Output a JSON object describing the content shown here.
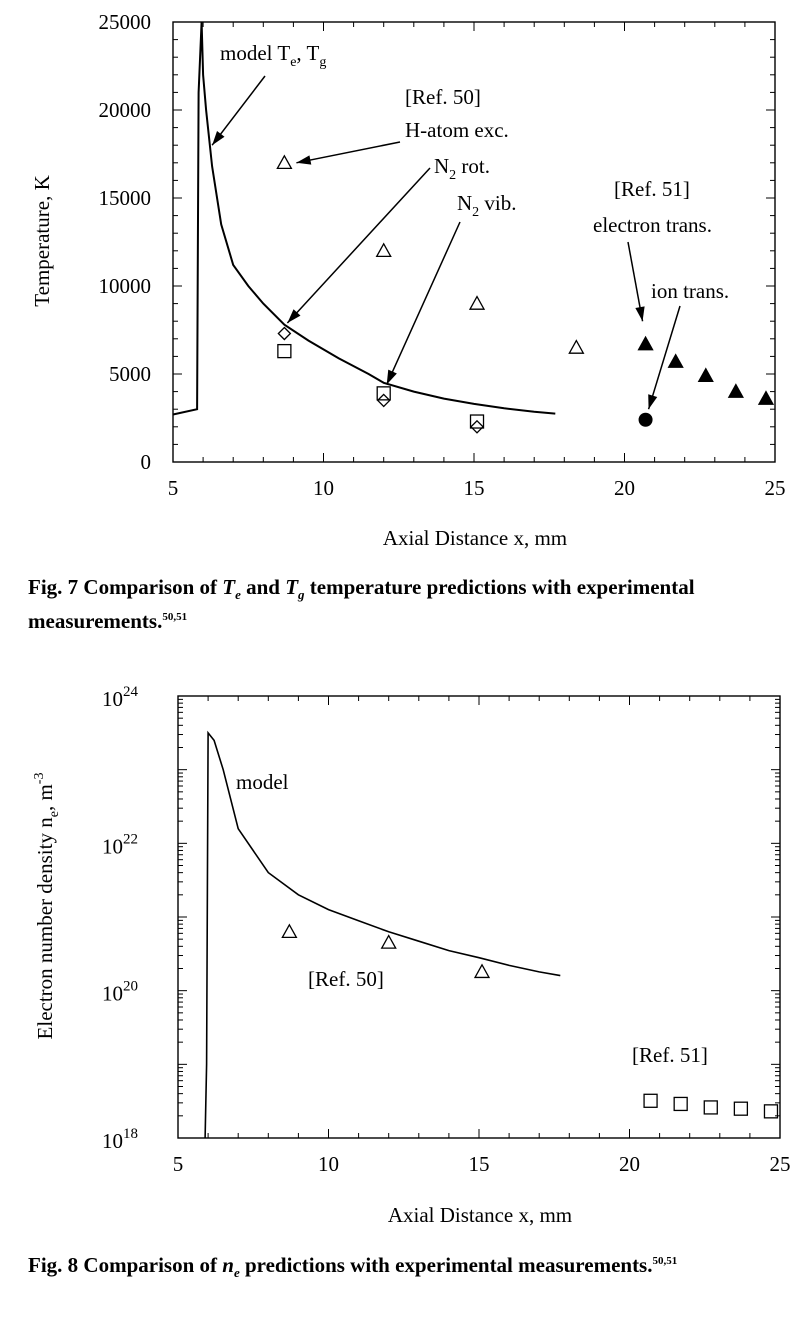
{
  "chart_data": [
    {
      "type": "line",
      "title": "",
      "xlabel": "Axial Distance x, mm",
      "ylabel": "Temperature, K",
      "xlim": [
        5,
        25
      ],
      "ylim": [
        0,
        25000
      ],
      "x_ticks": [
        "5",
        "10",
        "15",
        "20",
        "25"
      ],
      "y_ticks": [
        "0",
        "5000",
        "10000",
        "15000",
        "20000",
        "25000"
      ],
      "grid": false,
      "series": [
        {
          "name": "model Te, Tg",
          "style": "line",
          "points": [
            [
              5.0,
              2700
            ],
            [
              5.8,
              3000
            ],
            [
              5.85,
              21000
            ],
            [
              5.95,
              25000
            ],
            [
              6.0,
              22000
            ],
            [
              6.1,
              20000
            ],
            [
              6.3,
              16800
            ],
            [
              6.6,
              13500
            ],
            [
              7.0,
              11200
            ],
            [
              7.5,
              10000
            ],
            [
              8.0,
              9000
            ],
            [
              8.7,
              7800
            ],
            [
              9.5,
              6900
            ],
            [
              10.5,
              5900
            ],
            [
              11.5,
              5000
            ],
            [
              12.0,
              4500
            ],
            [
              13.0,
              4000
            ],
            [
              14.0,
              3600
            ],
            [
              15.0,
              3300
            ],
            [
              16.0,
              3050
            ],
            [
              17.0,
              2850
            ],
            [
              17.7,
              2750
            ]
          ]
        },
        {
          "name": "H-atom exc.",
          "marker": "triangle-open",
          "points": [
            [
              8.7,
              17000
            ],
            [
              12.0,
              12000
            ],
            [
              15.1,
              9000
            ],
            [
              18.4,
              6500
            ]
          ]
        },
        {
          "name": "N2 rot.",
          "marker": "diamond-open",
          "points": [
            [
              8.7,
              7300
            ],
            [
              12.0,
              3500
            ],
            [
              15.1,
              2000
            ]
          ]
        },
        {
          "name": "N2 vib.",
          "marker": "square-open",
          "points": [
            [
              8.7,
              6300
            ],
            [
              12.0,
              3900
            ],
            [
              15.1,
              2300
            ]
          ]
        },
        {
          "name": "electron trans.",
          "marker": "triangle-filled",
          "points": [
            [
              20.7,
              6700
            ],
            [
              21.7,
              5700
            ],
            [
              22.7,
              4900
            ],
            [
              23.7,
              4000
            ],
            [
              24.7,
              3600
            ]
          ]
        },
        {
          "name": "ion trans.",
          "marker": "circle-filled",
          "points": [
            [
              20.7,
              2400
            ]
          ]
        }
      ],
      "annotations": {
        "model": {
          "text": "model T",
          "sub1": "e",
          "sep": ", T",
          "sub2": "g"
        },
        "ref50": "[Ref. 50]",
        "hatom": "H-atom exc.",
        "n2rot": {
          "text": "N",
          "sub": "2",
          "rest": " rot."
        },
        "n2vib": {
          "text": "N",
          "sub": "2",
          "rest": " vib."
        },
        "ref51": "[Ref. 51]",
        "elec": "electron trans.",
        "ion": "ion trans."
      }
    },
    {
      "type": "line",
      "title": "",
      "xlabel": "Axial Distance x, mm",
      "ylabel": "Electron number density n",
      "ylabel_sub": "e",
      "ylabel_unit": ", m",
      "ylabel_sup": "-3",
      "xlim": [
        5,
        25
      ],
      "ylim_log10": [
        18,
        24
      ],
      "yscale": "log",
      "x_ticks": [
        "5",
        "10",
        "15",
        "20",
        "25"
      ],
      "y_ticks": [
        {
          "base": "10",
          "exp": "24"
        },
        {
          "base": "10",
          "exp": "22"
        },
        {
          "base": "10",
          "exp": "20"
        },
        {
          "base": "10",
          "exp": "18"
        }
      ],
      "grid": false,
      "series": [
        {
          "name": "model",
          "style": "line",
          "points": [
            [
              5.9,
              1e+18
            ],
            [
              5.95,
              1e+19
            ],
            [
              6.0,
              3.16e+23
            ],
            [
              6.2,
              2.5e+23
            ],
            [
              6.5,
              1e+23
            ],
            [
              7.0,
              1.58e+22
            ],
            [
              8.0,
              4e+21
            ],
            [
              9.0,
              2e+21
            ],
            [
              10.0,
              1.26e+21
            ],
            [
              11.0,
              8.9e+20
            ],
            [
              12.0,
              6.3e+20
            ],
            [
              13.0,
              4.7e+20
            ],
            [
              14.0,
              3.5e+20
            ],
            [
              15.0,
              2.8e+20
            ],
            [
              16.0,
              2.2e+20
            ],
            [
              17.0,
              1.8e+20
            ],
            [
              17.7,
              1.6e+20
            ]
          ]
        },
        {
          "name": "Ref. 50",
          "marker": "triangle-open",
          "points": [
            [
              8.7,
              6.3e+20
            ],
            [
              12.0,
              4.5e+20
            ],
            [
              15.1,
              1.8e+20
            ]
          ]
        },
        {
          "name": "Ref. 51",
          "marker": "square-open",
          "points": [
            [
              20.7,
              3.2e+18
            ],
            [
              21.7,
              2.9e+18
            ],
            [
              22.7,
              2.6e+18
            ],
            [
              23.7,
              2.5e+18
            ],
            [
              24.7,
              2.3e+18
            ]
          ]
        }
      ],
      "annotations": {
        "model": "model",
        "ref50": "[Ref. 50]",
        "ref51": "[Ref. 51]"
      }
    }
  ],
  "captions": {
    "fig7": {
      "prefix": "Fig. 7   Comparison of ",
      "v1": "T",
      "s1": "e",
      "mid": " and ",
      "v2": "T",
      "s2": "g",
      "rest": " temperature predictions with experimental measurements.",
      "refs": "50,51"
    },
    "fig8": {
      "prefix": "Fig. 8   Comparison of ",
      "v1": "n",
      "s1": "e",
      "rest": " predictions with experimental measurements.",
      "refs": "50,51"
    }
  }
}
